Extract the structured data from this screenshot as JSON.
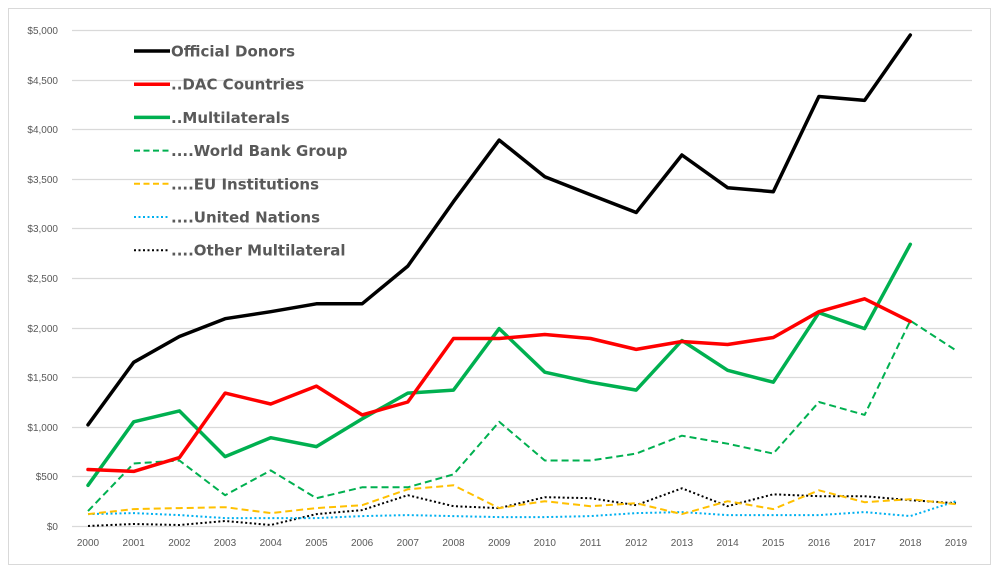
{
  "chart_data": {
    "type": "line",
    "title": "",
    "xlabel": "",
    "ylabel": "",
    "ylim": [
      0,
      5000
    ],
    "grid": true,
    "legend_position": "top-left",
    "x": [
      "2000",
      "2001",
      "2002",
      "2003",
      "2004",
      "2005",
      "2006",
      "2007",
      "2008",
      "2009",
      "2010",
      "2011",
      "2012",
      "2013",
      "2014",
      "2015",
      "2016",
      "2017",
      "2018",
      "2019"
    ],
    "y_ticks": [
      {
        "value": 0,
        "label": "$0"
      },
      {
        "value": 500,
        "label": "$500"
      },
      {
        "value": 1000,
        "label": "$1,000"
      },
      {
        "value": 1500,
        "label": "$1,500"
      },
      {
        "value": 2000,
        "label": "$2,000"
      },
      {
        "value": 2500,
        "label": "$2,500"
      },
      {
        "value": 3000,
        "label": "$3,000"
      },
      {
        "value": 3500,
        "label": "$3,500"
      },
      {
        "value": 4000,
        "label": "$4,000"
      },
      {
        "value": 4500,
        "label": "$4,500"
      },
      {
        "value": 5000,
        "label": "$5,000"
      }
    ],
    "series": [
      {
        "name": "Official Donors",
        "color": "#000000",
        "style": "solid",
        "width": 3.5,
        "values": [
          1020,
          1650,
          1910,
          2090,
          2160,
          2240,
          2240,
          2620,
          3270,
          3890,
          3520,
          3340,
          3160,
          3740,
          3410,
          3370,
          4330,
          4290,
          4950,
          null
        ]
      },
      {
        "name": "..DAC Countries",
        "color": "#ff0000",
        "style": "solid",
        "width": 3.5,
        "values": [
          570,
          550,
          690,
          1340,
          1230,
          1410,
          1120,
          1250,
          1890,
          1890,
          1930,
          1890,
          1780,
          1860,
          1830,
          1900,
          2160,
          2290,
          2060,
          null
        ]
      },
      {
        "name": "..Multilaterals",
        "color": "#00b050",
        "style": "solid",
        "width": 3.5,
        "values": [
          410,
          1050,
          1160,
          700,
          890,
          800,
          1080,
          1340,
          1370,
          1990,
          1550,
          1450,
          1370,
          1870,
          1570,
          1450,
          2150,
          1990,
          2840,
          null
        ]
      },
      {
        "name": "....World Bank Group",
        "color": "#00b050",
        "style": "dash",
        "width": 2,
        "values": [
          150,
          630,
          660,
          310,
          560,
          280,
          390,
          390,
          520,
          1050,
          660,
          660,
          730,
          910,
          830,
          730,
          1250,
          1120,
          2070,
          1770
        ]
      },
      {
        "name": "....EU Institutions",
        "color": "#ffc000",
        "style": "dash",
        "width": 2,
        "values": [
          120,
          170,
          180,
          190,
          130,
          180,
          210,
          370,
          410,
          180,
          250,
          200,
          230,
          120,
          250,
          170,
          360,
          240,
          270,
          220
        ]
      },
      {
        "name": "....United Nations",
        "color": "#00b0f0",
        "style": "dot",
        "width": 2,
        "values": [
          120,
          130,
          110,
          80,
          80,
          80,
          100,
          110,
          100,
          90,
          90,
          100,
          130,
          140,
          110,
          110,
          110,
          140,
          100,
          250
        ]
      },
      {
        "name": "....Other Multilateral",
        "color": "#000000",
        "style": "dot",
        "width": 2,
        "values": [
          0,
          20,
          10,
          50,
          10,
          120,
          160,
          310,
          200,
          180,
          290,
          280,
          210,
          380,
          200,
          320,
          300,
          300,
          260,
          230
        ]
      }
    ]
  }
}
